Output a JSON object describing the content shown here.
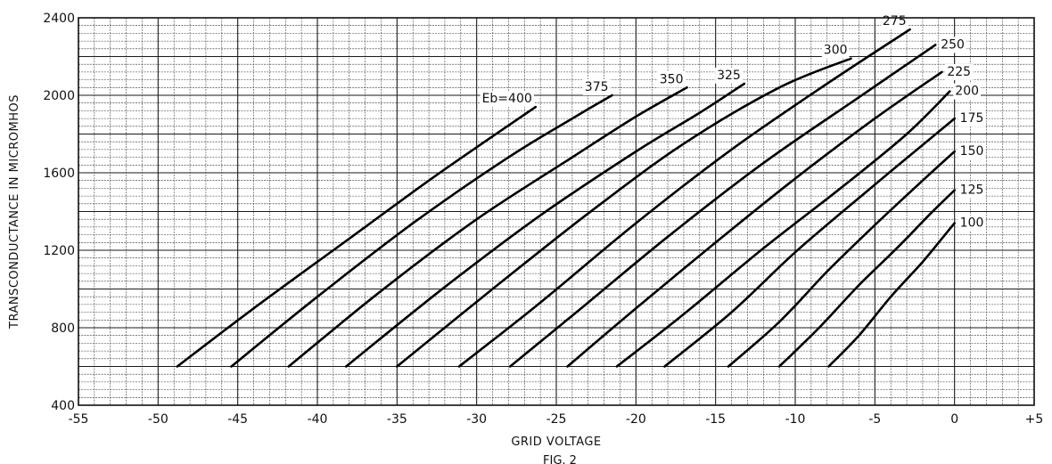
{
  "chart_data": {
    "type": "line",
    "title": "",
    "xlabel": "GRID VOLTAGE",
    "ylabel": "TRANSCONDUCTANCE IN MICROMHOS",
    "xlim": [
      -55,
      5
    ],
    "ylim": [
      400,
      2400
    ],
    "x_ticks": [
      "-55",
      "-50",
      "-45",
      "-40",
      "-35",
      "-30",
      "-25",
      "-20",
      "-15",
      "-10",
      "-5",
      "0",
      "+5"
    ],
    "x_tick_values": [
      -55,
      -50,
      -45,
      -40,
      -35,
      -30,
      -25,
      -20,
      -15,
      -10,
      -5,
      0,
      5
    ],
    "y_ticks": [
      "400",
      "800",
      "1200",
      "1600",
      "2000",
      "2400"
    ],
    "y_tick_values": [
      400,
      800,
      1200,
      1600,
      2000,
      2400
    ],
    "grid": true,
    "legend": "none (curves labeled directly)",
    "figure_caption": "FIG. 2",
    "series": [
      {
        "name": "Eb=400",
        "label": "Eb=400",
        "x": [
          -48.8,
          -44,
          -38,
          -33,
          -29.5,
          -26.3
        ],
        "y": [
          600,
          900,
          1260,
          1560,
          1760,
          1940
        ]
      },
      {
        "name": "375",
        "label": "375",
        "x": [
          -45.4,
          -40,
          -34,
          -28,
          -24,
          -21.5
        ],
        "y": [
          600,
          960,
          1340,
          1680,
          1880,
          2000
        ]
      },
      {
        "name": "350",
        "label": "350",
        "x": [
          -41.8,
          -36,
          -30,
          -24,
          -20,
          -16.8
        ],
        "y": [
          600,
          990,
          1360,
          1680,
          1890,
          2040
        ]
      },
      {
        "name": "325",
        "label": "325",
        "x": [
          -38.2,
          -32,
          -26,
          -20,
          -16,
          -13.2
        ],
        "y": [
          600,
          1010,
          1380,
          1710,
          1910,
          2060
        ]
      },
      {
        "name": "300",
        "label": "300",
        "x": [
          -35,
          -29,
          -23,
          -17,
          -11,
          -6.5
        ],
        "y": [
          600,
          1000,
          1390,
          1750,
          2040,
          2190
        ]
      },
      {
        "name": "275",
        "label": "275",
        "x": [
          -31.1,
          -26,
          -20,
          -14,
          -8,
          -2.8
        ],
        "y": [
          600,
          930,
          1340,
          1720,
          2060,
          2340
        ]
      },
      {
        "name": "250",
        "label": "250",
        "x": [
          -27.9,
          -23,
          -18,
          -12,
          -6,
          -1.2
        ],
        "y": [
          600,
          930,
          1270,
          1650,
          1990,
          2260
        ]
      },
      {
        "name": "225",
        "label": "225",
        "x": [
          -24.3,
          -20,
          -15,
          -10,
          -5,
          -0.8
        ],
        "y": [
          600,
          900,
          1240,
          1570,
          1880,
          2120
        ]
      },
      {
        "name": "200",
        "label": "200",
        "x": [
          -21.2,
          -17,
          -12,
          -7,
          -3,
          -0.3
        ],
        "y": [
          600,
          870,
          1210,
          1530,
          1800,
          2020
        ]
      },
      {
        "name": "175",
        "label": "175",
        "x": [
          -18.2,
          -14,
          -10,
          -6,
          -2.5,
          0
        ],
        "y": [
          600,
          880,
          1190,
          1470,
          1710,
          1880
        ]
      },
      {
        "name": "150",
        "label": "150",
        "x": [
          -14.2,
          -11,
          -8,
          -5,
          -2,
          0
        ],
        "y": [
          600,
          830,
          1090,
          1330,
          1560,
          1710
        ]
      },
      {
        "name": "125",
        "label": "125",
        "x": [
          -11,
          -8.5,
          -6,
          -3.5,
          -1.5,
          0
        ],
        "y": [
          600,
          800,
          1020,
          1220,
          1390,
          1510
        ]
      },
      {
        "name": "100",
        "label": "100",
        "x": [
          -7.9,
          -6,
          -4,
          -2,
          -0.7,
          0
        ],
        "y": [
          600,
          760,
          960,
          1140,
          1270,
          1340
        ]
      }
    ]
  }
}
